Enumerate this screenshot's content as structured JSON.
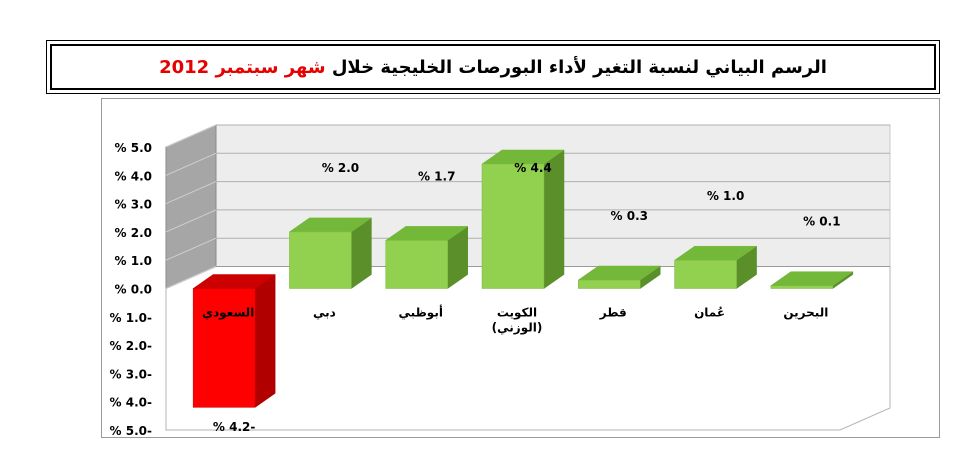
{
  "title": {
    "main": "الرسم البياني لنسبة التغير لأداء البورصات الخليجية خلال",
    "highlight": "شهر سبتمبر 2012"
  },
  "chart_data": {
    "type": "bar",
    "categories": [
      "السعودي",
      "دبي",
      "أبوظبي",
      "الكويت\n(الوزني)",
      "قطر",
      "عُمان",
      "البحرين"
    ],
    "values": [
      -4.2,
      2.0,
      1.7,
      4.4,
      0.3,
      1.0,
      0.1
    ],
    "value_labels": [
      "% 4.2-",
      "% 2.0",
      "% 1.7",
      "% 4.4",
      "% 0.3",
      "% 1.0",
      "% 0.1"
    ],
    "ylim": [
      -5,
      5
    ],
    "ytick_values": [
      5,
      4,
      3,
      2,
      1,
      0,
      -1,
      -2,
      -3,
      -4,
      -5
    ],
    "yticks": [
      "% 5.0",
      "% 4.0",
      "% 3.0",
      "% 2.0",
      "% 1.0",
      "% 0.0",
      "% 1.0-",
      "% 2.0-",
      "% 3.0-",
      "% 4.0-",
      "% 5.0-"
    ],
    "grid": true,
    "three_d": true,
    "colors": {
      "positive_front": "#92d050",
      "positive_top": "#74b83a",
      "positive_side": "#5a8f2a",
      "negative_front": "#ff0000",
      "negative_top": "#cc0000",
      "negative_side": "#b00000",
      "floor": "#ffffff",
      "wall": "#ededed",
      "side_wall": "#a6a6a6",
      "grid": "#b0b0b0"
    }
  }
}
